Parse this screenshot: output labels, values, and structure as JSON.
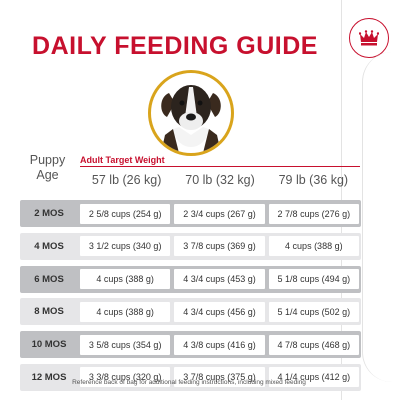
{
  "title": "DAILY FEEDING GUIDE",
  "header": {
    "puppy_age_line1": "Puppy",
    "puppy_age_line2": "Age",
    "target_label": "Adult Target Weight",
    "weights": [
      "57 lb (26 kg)",
      "70 lb (32 kg)",
      "79 lb (36 kg)"
    ]
  },
  "rows": [
    {
      "age": "2 MOS",
      "cells": [
        "2 5/8 cups (254 g)",
        "2 3/4 cups (267 g)",
        "2 7/8 cups (276 g)"
      ]
    },
    {
      "age": "4 MOS",
      "cells": [
        "3 1/2 cups (340 g)",
        "3 7/8 cups (369 g)",
        "4 cups (388 g)"
      ]
    },
    {
      "age": "6 MOS",
      "cells": [
        "4 cups (388 g)",
        "4 3/4 cups (453 g)",
        "5 1/8 cups (494 g)"
      ]
    },
    {
      "age": "8 MOS",
      "cells": [
        "4 cups (388 g)",
        "4 3/4 cups (456 g)",
        "5 1/4 cups (502 g)"
      ]
    },
    {
      "age": "10 MOS",
      "cells": [
        "3 5/8 cups (354 g)",
        "4 3/8 cups (416 g)",
        "4 7/8 cups (468 g)"
      ]
    },
    {
      "age": "12 MOS",
      "cells": [
        "3 3/8 cups (320 g)",
        "3 7/8 cups (375 g)",
        "4 1/4 cups (412 g)"
      ]
    }
  ],
  "footnote": "Reference back of bag for additional feeding instructions, including mixed feeding",
  "colors": {
    "brand_red": "#c7102e",
    "gold_ring": "#d9a41c",
    "row_dark": "#bfc0c3",
    "row_light": "#e6e6e8"
  },
  "icons": {
    "brand": "crown-icon",
    "photo": "boxer-puppy-photo"
  }
}
